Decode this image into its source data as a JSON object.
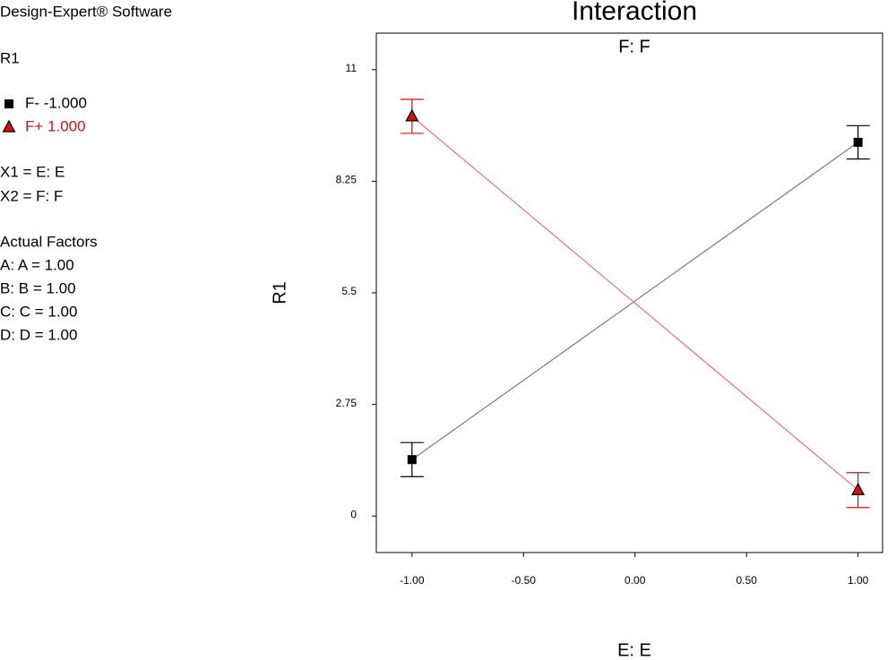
{
  "sidebar": {
    "software": "Design-Expert® Software",
    "response": "R1",
    "x1": "X1 = E: E",
    "x2": "X2 = F: F",
    "factors_title": "Actual Factors",
    "factors": [
      "A: A = 1.00",
      "B: B = 1.00",
      "C: C = 1.00",
      "D: D = 1.00"
    ]
  },
  "chart_data": {
    "type": "interaction",
    "title": "Interaction",
    "subtitle": "F: F",
    "x_label": "E: E",
    "y_label": "R1",
    "x": [
      -1,
      1
    ],
    "series": [
      {
        "name": "F- -1.000",
        "color": "#000000",
        "line_color": "#7a7a7a",
        "marker": "square",
        "values": [
          1.39,
          9.21
        ],
        "errors": [
          0.42,
          0.41
        ]
      },
      {
        "name": "F+ 1.000",
        "color": "#d81010",
        "line_color": "#f07070",
        "marker": "triangle",
        "values": [
          9.85,
          0.64
        ],
        "errors": [
          0.42,
          0.43
        ]
      }
    ],
    "xlim": [
      -1.16,
      1.11
    ],
    "ylim": [
      -0.9,
      11.9
    ],
    "xticks": [
      {
        "value": -1,
        "label": "-1.00"
      },
      {
        "value": -0.5,
        "label": "-0.50"
      },
      {
        "value": 0,
        "label": "0.00"
      },
      {
        "value": 0.5,
        "label": "0.50"
      },
      {
        "value": 1,
        "label": "1.00"
      }
    ],
    "yticks": [
      0,
      2.75,
      5.5,
      8.25,
      11
    ]
  }
}
